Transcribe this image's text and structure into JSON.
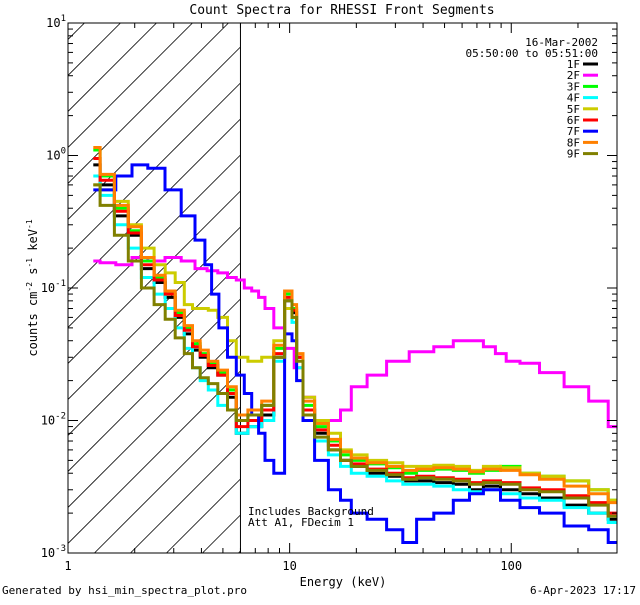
{
  "chart_data": {
    "type": "line",
    "title": "Count Spectra for RHESSI Front Segments",
    "xlabel": "Energy (keV)",
    "ylabel": {
      "main": "counts cm",
      "exp1": "-2",
      "s": " s",
      "exp2": "-1",
      "kev": " keV",
      "exp3": "-1"
    },
    "xscale": "log",
    "yscale": "log",
    "xlim": [
      1,
      300
    ],
    "ylim": [
      0.001,
      10
    ],
    "x_ticks": [
      {
        "value": 1,
        "label": "1"
      },
      {
        "value": 10,
        "label": "10"
      },
      {
        "value": 100,
        "label": "100"
      }
    ],
    "y_ticks": [
      {
        "value": 0.001,
        "base": "10",
        "exp": "-3"
      },
      {
        "value": 0.01,
        "base": "10",
        "exp": "-2"
      },
      {
        "value": 0.1,
        "base": "10",
        "exp": "-1"
      },
      {
        "value": 1,
        "base": "10",
        "exp": "0"
      },
      {
        "value": 10,
        "base": "10",
        "exp": "1"
      }
    ],
    "date": "16-Mar-2002",
    "time_range": "05:50:00 to 05:51:00",
    "hatched_region": [
      1,
      6
    ],
    "annotations": [
      "Includes Background",
      "Att A1, FDecim 1"
    ],
    "legend_position": "top-right",
    "series": [
      {
        "name": "1F",
        "color": "#000000",
        "x": [
          1.3,
          1.5,
          1.75,
          2.0,
          2.3,
          2.6,
          2.9,
          3.2,
          3.5,
          3.8,
          4.1,
          4.5,
          5,
          5.5,
          6,
          7,
          8,
          9,
          10,
          10.5,
          11,
          12,
          14,
          16,
          18,
          20,
          25,
          30,
          35,
          40,
          50,
          60,
          70,
          80,
          100,
          120,
          150,
          200,
          250,
          300
        ],
        "y": [
          0.85,
          0.6,
          0.35,
          0.25,
          0.14,
          0.11,
          0.085,
          0.06,
          0.045,
          0.034,
          0.03,
          0.025,
          0.022,
          0.015,
          0.008,
          0.009,
          0.011,
          0.03,
          0.08,
          0.065,
          0.03,
          0.012,
          0.008,
          0.006,
          0.005,
          0.0045,
          0.004,
          0.0038,
          0.0035,
          0.0035,
          0.0034,
          0.0033,
          0.003,
          0.0032,
          0.003,
          0.0028,
          0.0026,
          0.0023,
          0.002,
          0.0018
        ]
      },
      {
        "name": "2F",
        "color": "#ff00ff",
        "x": [
          1.3,
          1.5,
          1.8,
          2.1,
          2.5,
          3.0,
          3.5,
          4.0,
          4.5,
          5,
          5.5,
          6,
          6.5,
          7,
          7.5,
          8,
          9,
          10,
          11,
          12,
          14,
          16,
          18,
          20,
          25,
          30,
          40,
          50,
          60,
          70,
          80,
          90,
          100,
          120,
          150,
          200,
          250,
          300
        ],
        "y": [
          0.16,
          0.155,
          0.15,
          0.17,
          0.16,
          0.17,
          0.16,
          0.14,
          0.135,
          0.13,
          0.12,
          0.115,
          0.1,
          0.095,
          0.085,
          0.07,
          0.05,
          0.035,
          0.025,
          0.015,
          0.01,
          0.01,
          0.012,
          0.018,
          0.022,
          0.028,
          0.033,
          0.036,
          0.04,
          0.04,
          0.036,
          0.032,
          0.028,
          0.027,
          0.023,
          0.018,
          0.014,
          0.009
        ]
      },
      {
        "name": "3F",
        "color": "#00ff00",
        "x": [
          1.3,
          1.5,
          1.75,
          2.0,
          2.3,
          2.6,
          2.9,
          3.2,
          3.5,
          3.8,
          4.1,
          4.5,
          5,
          5.5,
          6,
          7,
          8,
          9,
          10,
          10.5,
          11,
          12,
          14,
          16,
          18,
          20,
          25,
          30,
          35,
          40,
          50,
          60,
          70,
          80,
          100,
          120,
          150,
          200,
          250,
          300
        ],
        "y": [
          1.1,
          0.7,
          0.4,
          0.27,
          0.16,
          0.12,
          0.09,
          0.065,
          0.05,
          0.038,
          0.032,
          0.027,
          0.023,
          0.017,
          0.01,
          0.011,
          0.013,
          0.035,
          0.09,
          0.07,
          0.03,
          0.013,
          0.009,
          0.007,
          0.0055,
          0.005,
          0.0047,
          0.0044,
          0.004,
          0.0042,
          0.0043,
          0.0042,
          0.004,
          0.0042,
          0.0045,
          0.004,
          0.0038,
          0.0035,
          0.003,
          0.0025
        ]
      },
      {
        "name": "4F",
        "color": "#00ffff",
        "x": [
          1.3,
          1.5,
          1.75,
          2.0,
          2.3,
          2.6,
          2.9,
          3.2,
          3.5,
          3.8,
          4.1,
          4.5,
          5,
          5.5,
          6,
          7,
          8,
          9,
          10,
          10.5,
          11,
          12,
          14,
          16,
          18,
          20,
          25,
          30,
          35,
          40,
          50,
          60,
          70,
          80,
          100,
          120,
          150,
          200,
          250,
          300
        ],
        "y": [
          0.7,
          0.5,
          0.3,
          0.2,
          0.12,
          0.09,
          0.07,
          0.05,
          0.035,
          0.025,
          0.02,
          0.017,
          0.013,
          0.012,
          0.008,
          0.009,
          0.01,
          0.028,
          0.07,
          0.055,
          0.025,
          0.011,
          0.007,
          0.0055,
          0.0045,
          0.004,
          0.0038,
          0.0035,
          0.0033,
          0.0033,
          0.0032,
          0.003,
          0.0029,
          0.003,
          0.0028,
          0.0026,
          0.0025,
          0.0022,
          0.002,
          0.0017
        ]
      },
      {
        "name": "5F",
        "color": "#cccc00",
        "x": [
          1.3,
          1.5,
          1.75,
          2.0,
          2.3,
          2.6,
          2.9,
          3.2,
          3.5,
          3.8,
          4.1,
          4.5,
          5,
          5.5,
          6,
          7,
          8,
          9,
          10,
          10.5,
          11,
          12,
          14,
          16,
          18,
          20,
          25,
          30,
          35,
          40,
          50,
          60,
          70,
          80,
          100,
          120,
          150,
          200,
          250,
          300
        ],
        "y": [
          0.6,
          0.55,
          0.45,
          0.3,
          0.2,
          0.15,
          0.13,
          0.11,
          0.075,
          0.07,
          0.07,
          0.068,
          0.06,
          0.04,
          0.03,
          0.028,
          0.03,
          0.04,
          0.07,
          0.06,
          0.03,
          0.015,
          0.01,
          0.008,
          0.006,
          0.0055,
          0.005,
          0.0048,
          0.0045,
          0.0045,
          0.0046,
          0.0045,
          0.0042,
          0.0045,
          0.0044,
          0.004,
          0.0038,
          0.0035,
          0.003,
          0.0025
        ]
      },
      {
        "name": "6F",
        "color": "#ff0000",
        "x": [
          1.3,
          1.5,
          1.75,
          2.0,
          2.3,
          2.6,
          2.9,
          3.2,
          3.5,
          3.8,
          4.1,
          4.5,
          5,
          5.5,
          6,
          7,
          8,
          9,
          10,
          10.5,
          11,
          12,
          14,
          16,
          18,
          20,
          25,
          30,
          35,
          40,
          50,
          60,
          70,
          80,
          100,
          120,
          150,
          200,
          250,
          300
        ],
        "y": [
          0.95,
          0.65,
          0.38,
          0.26,
          0.15,
          0.115,
          0.09,
          0.062,
          0.048,
          0.036,
          0.031,
          0.026,
          0.022,
          0.016,
          0.009,
          0.01,
          0.012,
          0.032,
          0.085,
          0.068,
          0.03,
          0.012,
          0.0085,
          0.0065,
          0.005,
          0.0047,
          0.0043,
          0.004,
          0.0037,
          0.0038,
          0.0037,
          0.0036,
          0.0034,
          0.0035,
          0.0034,
          0.0031,
          0.003,
          0.0027,
          0.0024,
          0.002
        ]
      },
      {
        "name": "7F",
        "color": "#0000ff",
        "x": [
          1.3,
          1.5,
          1.8,
          2.1,
          2.5,
          3.0,
          3.5,
          4.0,
          4.3,
          4.6,
          5.0,
          5.5,
          6,
          6.5,
          7,
          7.5,
          8,
          9,
          10,
          10.5,
          11,
          12,
          14,
          16,
          18,
          20,
          25,
          30,
          35,
          40,
          50,
          60,
          70,
          80,
          100,
          120,
          150,
          200,
          250,
          300
        ],
        "y": [
          0.55,
          0.55,
          0.7,
          0.85,
          0.8,
          0.55,
          0.35,
          0.23,
          0.15,
          0.09,
          0.05,
          0.03,
          0.022,
          0.016,
          0.011,
          0.008,
          0.005,
          0.004,
          0.045,
          0.04,
          0.02,
          0.01,
          0.005,
          0.003,
          0.0025,
          0.002,
          0.0018,
          0.0015,
          0.0012,
          0.0018,
          0.002,
          0.0025,
          0.0028,
          0.003,
          0.0025,
          0.0022,
          0.002,
          0.0016,
          0.0015,
          0.0012
        ]
      },
      {
        "name": "8F",
        "color": "#ff8000",
        "x": [
          1.3,
          1.5,
          1.75,
          2.0,
          2.3,
          2.6,
          2.9,
          3.2,
          3.5,
          3.8,
          4.1,
          4.5,
          5,
          5.5,
          6,
          7,
          8,
          9,
          10,
          10.5,
          11,
          12,
          14,
          16,
          18,
          20,
          25,
          30,
          35,
          40,
          50,
          60,
          70,
          80,
          100,
          120,
          150,
          200,
          250,
          300
        ],
        "y": [
          1.15,
          0.72,
          0.42,
          0.29,
          0.17,
          0.125,
          0.095,
          0.068,
          0.052,
          0.04,
          0.034,
          0.028,
          0.024,
          0.018,
          0.011,
          0.012,
          0.014,
          0.037,
          0.095,
          0.075,
          0.032,
          0.014,
          0.0095,
          0.0072,
          0.0058,
          0.0052,
          0.0048,
          0.0045,
          0.0042,
          0.0043,
          0.0044,
          0.0043,
          0.0041,
          0.0043,
          0.0042,
          0.0039,
          0.0036,
          0.0032,
          0.0028,
          0.0024
        ]
      },
      {
        "name": "9F",
        "color": "#808000",
        "x": [
          1.3,
          1.5,
          1.75,
          2.0,
          2.3,
          2.6,
          2.9,
          3.2,
          3.5,
          3.8,
          4.1,
          4.5,
          5,
          5.5,
          6,
          7,
          8,
          9,
          10,
          10.5,
          11,
          12,
          14,
          16,
          18,
          20,
          25,
          30,
          35,
          40,
          50,
          60,
          70,
          80,
          100,
          120,
          150,
          200,
          250,
          300
        ],
        "y": [
          0.6,
          0.42,
          0.25,
          0.16,
          0.1,
          0.075,
          0.058,
          0.042,
          0.032,
          0.025,
          0.021,
          0.019,
          0.016,
          0.012,
          0.01,
          0.011,
          0.013,
          0.03,
          0.08,
          0.06,
          0.028,
          0.011,
          0.0075,
          0.006,
          0.005,
          0.0045,
          0.0042,
          0.0039,
          0.0036,
          0.0037,
          0.0036,
          0.0035,
          0.0033,
          0.0034,
          0.0033,
          0.003,
          0.0029,
          0.0026,
          0.0023,
          0.0019
        ]
      }
    ]
  },
  "footer": {
    "left": "Generated by hsi_min_spectra_plot.pro",
    "right": "6-Apr-2023 17:17"
  }
}
